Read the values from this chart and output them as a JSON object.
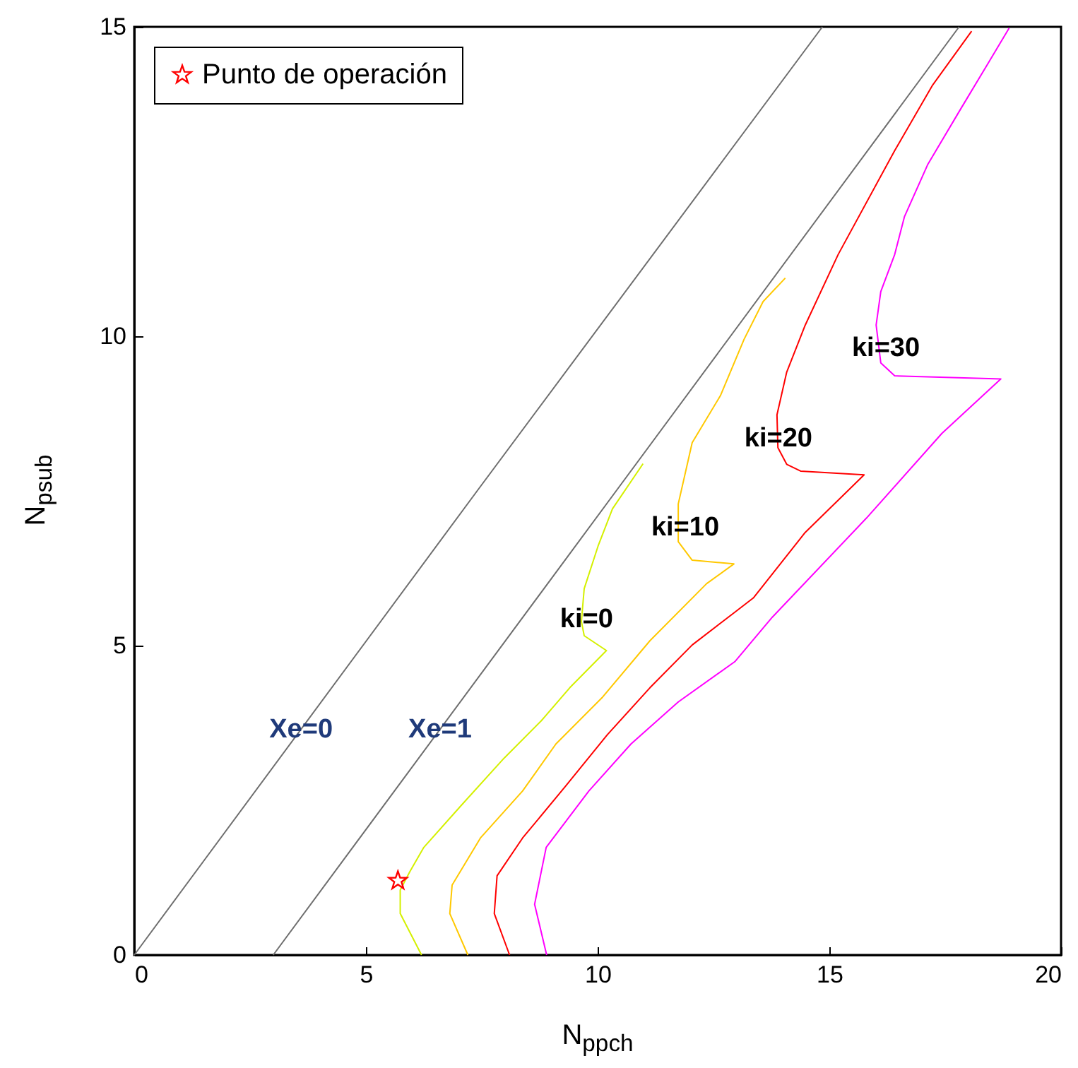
{
  "chart_data": {
    "type": "line",
    "xlabel": "N$_{ppch}$",
    "ylabel": "N$_{psub}$",
    "xlim": [
      0,
      20
    ],
    "ylim": [
      0,
      15
    ],
    "xticks": [
      0,
      5,
      10,
      15,
      20
    ],
    "yticks": [
      0,
      5,
      10,
      15
    ],
    "legend": "top left",
    "line_style": "solid",
    "series": [
      {
        "color": "#6e6e6e",
        "x": [
          0,
          7.4,
          14.85
        ],
        "values": [
          0,
          7.5,
          15
        ]
      },
      {
        "color": "#6e6e6e",
        "x": [
          3,
          10.4,
          17.8
        ],
        "values": [
          0,
          7.5,
          15
        ]
      },
      {
        "color": "#d4f000",
        "x": [
          6.2,
          5.74,
          5.74,
          5.95,
          6.25,
          7.06,
          7.98,
          8.79,
          9.4,
          10.19,
          9.71,
          9.65,
          9.71,
          10.01,
          10.32,
          10.98
        ],
        "values": [
          0,
          0.67,
          1.05,
          1.35,
          1.74,
          2.42,
          3.18,
          3.79,
          4.32,
          4.92,
          5.16,
          5.39,
          5.92,
          6.61,
          7.21,
          7.94
        ]
      },
      {
        "color": "#ffc800",
        "x": [
          7.2,
          6.81,
          6.86,
          7.47,
          8.38,
          9.1,
          10.11,
          11.13,
          12.35,
          12.94,
          12.04,
          11.74,
          11.74,
          12.04,
          12.65,
          13.16,
          13.57,
          14.05
        ],
        "values": [
          0,
          0.67,
          1.13,
          1.89,
          2.65,
          3.41,
          4.17,
          5.08,
          6,
          6.32,
          6.38,
          6.68,
          7.29,
          8.28,
          9.04,
          9.95,
          10.56,
          10.94
        ]
      },
      {
        "color": "#ff0000",
        "x": [
          8.1,
          7.77,
          7.83,
          8.38,
          9.3,
          10.21,
          11.13,
          12.04,
          12.96,
          13.36,
          14.48,
          15.75,
          14.38,
          14.08,
          13.89,
          13.87,
          14.08,
          14.48,
          15.19,
          16.41,
          17.23,
          18.07
        ],
        "values": [
          0,
          0.67,
          1.28,
          1.89,
          2.72,
          3.56,
          4.32,
          5.01,
          5.54,
          5.77,
          6.83,
          7.76,
          7.82,
          7.93,
          8.2,
          8.73,
          9.42,
          10.18,
          11.32,
          13,
          14.06,
          14.93
        ]
      },
      {
        "color": "#ff00ff",
        "x": [
          8.9,
          8.64,
          8.89,
          9.81,
          10.72,
          11.74,
          12.96,
          13.77,
          15.8,
          17.43,
          18.7,
          16.41,
          16.11,
          16.01,
          16.11,
          16.41,
          16.62,
          17.12,
          17.84,
          18.45,
          18.88
        ],
        "values": [
          0,
          0.82,
          1.74,
          2.65,
          3.41,
          4.09,
          4.74,
          5.46,
          7.06,
          8.43,
          9.31,
          9.36,
          9.57,
          10.18,
          10.72,
          11.32,
          11.93,
          12.77,
          13.68,
          14.44,
          14.98
        ]
      },
      {
        "name": "Punto de operación",
        "type": "scatter",
        "marker": "star",
        "color": "#ff0000",
        "x": [
          5.69
        ],
        "values": [
          1.2
        ]
      }
    ],
    "annotations": [
      {
        "text": "Xe=0",
        "x": 3.6,
        "y": 3.65
      },
      {
        "text": "Xe=1",
        "x": 6.6,
        "y": 3.65
      },
      {
        "text": "ki=0",
        "x": 9.76,
        "y": 5.43
      },
      {
        "text": "ki=10",
        "x": 11.89,
        "y": 6.92
      },
      {
        "text": "ki=20",
        "x": 13.9,
        "y": 8.36
      },
      {
        "text": "ki=30",
        "x": 16.22,
        "y": 9.82
      }
    ]
  }
}
